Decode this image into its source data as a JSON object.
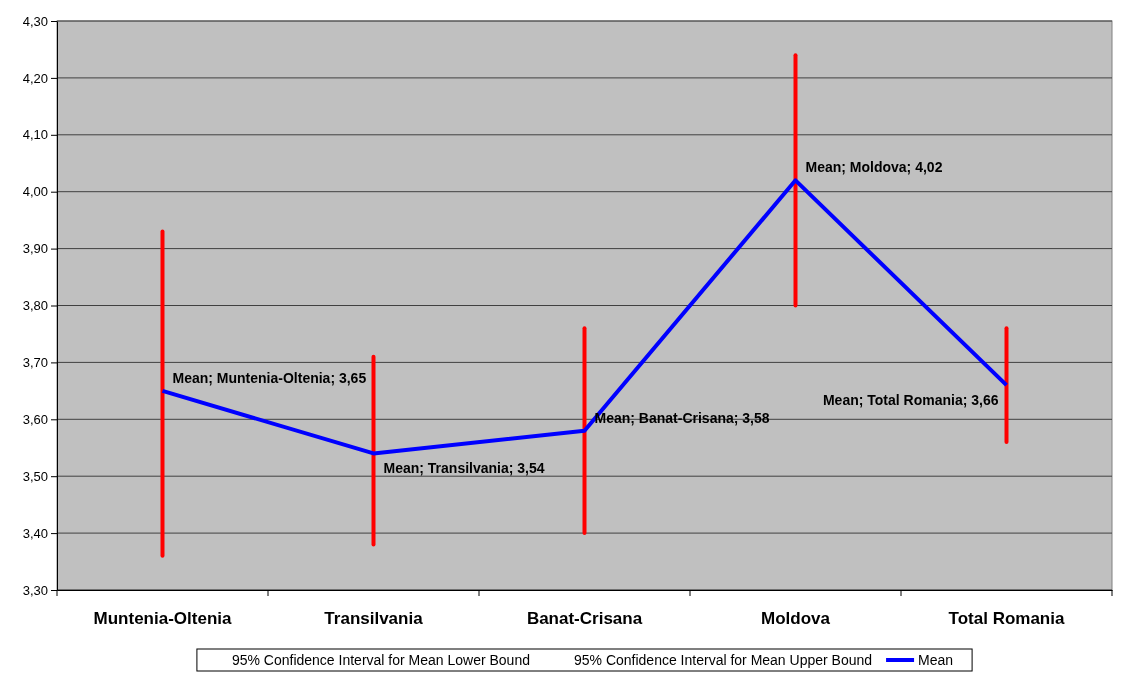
{
  "chart_data": {
    "type": "line",
    "categories": [
      "Muntenia-Oltenia",
      "Transilvania",
      "Banat-Crisana",
      "Moldova",
      "Total Romania"
    ],
    "series": [
      {
        "name": "Mean",
        "color": "#0000ff",
        "values": [
          3.65,
          3.54,
          3.58,
          4.02,
          3.66
        ],
        "value_labels": [
          "Mean; Muntenia-Oltenia; 3,65",
          "Mean; Transilvania; 3,54",
          "Mean; Banat-Crisana; 3,58",
          "Mean; Moldova; 4,02",
          "Mean; Total Romania; 3,66"
        ],
        "errors": [
          [
            3.36,
            3.93
          ],
          [
            3.38,
            3.71
          ],
          [
            3.4,
            3.76
          ],
          [
            3.8,
            4.24
          ],
          [
            3.56,
            3.76
          ]
        ]
      }
    ],
    "annotations": [
      "95% Confidence Interval for Mean Lower Bound",
      "95% Confidence Interval for Mean Upper Bound"
    ],
    "ylim": [
      3.3,
      4.3
    ],
    "yticks": [
      {
        "value": 3.3,
        "label": "3,30"
      },
      {
        "value": 3.4,
        "label": "3,40"
      },
      {
        "value": 3.5,
        "label": "3,50"
      },
      {
        "value": 3.6,
        "label": "3,60"
      },
      {
        "value": 3.7,
        "label": "3,70"
      },
      {
        "value": 3.8,
        "label": "3,80"
      },
      {
        "value": 3.9,
        "label": "3,90"
      },
      {
        "value": 4.0,
        "label": "4,00"
      },
      {
        "value": 4.1,
        "label": "4,10"
      },
      {
        "value": 4.2,
        "label": "4,20"
      },
      {
        "value": 4.3,
        "label": "4,30"
      }
    ],
    "grid": "y",
    "legend": "bottom"
  }
}
